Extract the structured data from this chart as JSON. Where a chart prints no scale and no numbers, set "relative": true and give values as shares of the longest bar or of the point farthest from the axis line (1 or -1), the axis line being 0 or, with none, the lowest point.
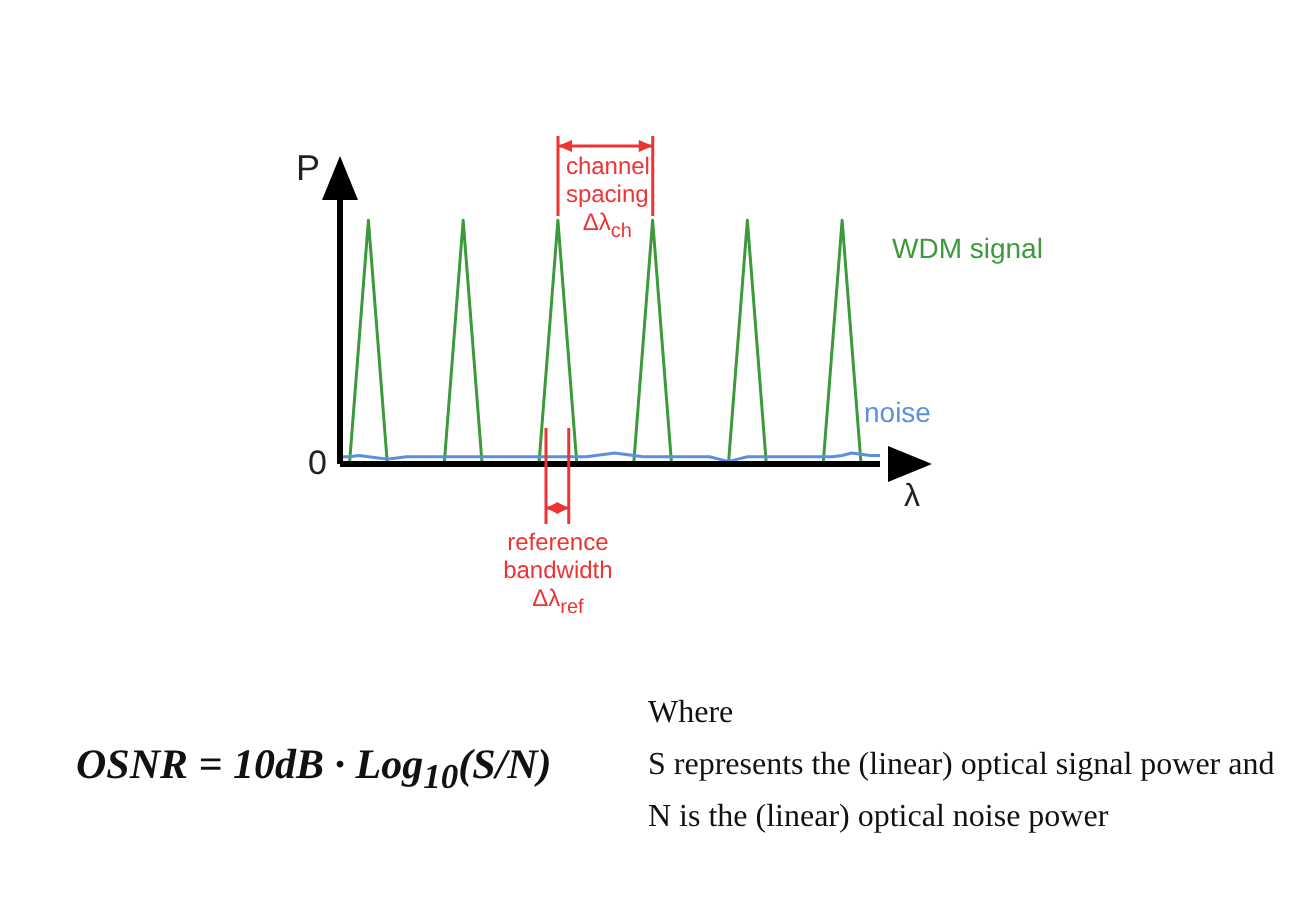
{
  "chart_data": {
    "type": "line",
    "relative": true,
    "xlabel": "λ",
    "ylabel": "P",
    "legend": false,
    "grid": false,
    "marker": "none",
    "line_style": "solid",
    "categories": [
      null,
      null,
      null,
      null,
      null,
      null,
      null,
      null,
      null,
      null,
      null,
      null,
      null,
      null,
      null,
      null,
      null,
      null,
      null,
      null,
      null,
      null,
      null,
      null,
      null,
      null,
      null,
      null,
      null,
      null,
      null,
      null,
      null,
      null,
      null,
      null,
      null,
      null,
      null,
      null,
      null,
      null,
      null,
      null,
      null,
      null,
      null,
      null,
      null,
      null,
      null,
      null,
      null,
      null,
      null,
      null,
      null,
      null
    ],
    "series": [
      {
        "name": "WDM signal",
        "color": "#3c9a3c",
        "values": [
          0,
          0,
          0.5,
          1,
          0.5,
          0,
          0,
          0,
          0,
          0,
          0,
          0,
          0.5,
          1,
          0.5,
          0,
          0,
          0,
          0,
          0,
          0,
          0,
          0.5,
          1,
          0.5,
          0,
          0,
          0,
          0,
          0,
          0,
          0,
          0.5,
          1,
          0.5,
          0,
          0,
          0,
          0,
          0,
          0,
          0,
          0.5,
          1,
          0.5,
          0,
          0,
          0,
          0,
          0,
          0,
          0,
          0.5,
          1,
          0.5,
          0,
          0,
          0
        ]
      },
      {
        "name": "noise",
        "color": "#5b8fe0",
        "values": [
          0.03,
          0.03,
          0.035,
          0.03,
          0.025,
          0.02,
          0.025,
          0.03,
          0.03,
          0.03,
          0.03,
          0.03,
          0.03,
          0.03,
          0.03,
          0.03,
          0.03,
          0.03,
          0.03,
          0.03,
          0.03,
          0.03,
          0.03,
          0.03,
          0.03,
          0.03,
          0.03,
          0.035,
          0.04,
          0.045,
          0.04,
          0.035,
          0.03,
          0.03,
          0.03,
          0.03,
          0.03,
          0.03,
          0.03,
          0.03,
          0.02,
          0.01,
          0.02,
          0.03,
          0.03,
          0.03,
          0.03,
          0.03,
          0.03,
          0.03,
          0.03,
          0.03,
          0.03,
          0.035,
          0.045,
          0.04,
          0.035,
          0.035
        ]
      }
    ],
    "annotations": [
      "0",
      "channel spacing Δλ$_{ch}$",
      "reference bandwidth Δλ$_{ref}$",
      "OSNR = 10dB · Log$_{10}$(S/N)",
      "Where",
      "S represents the (linear) optical signal power and",
      "N is the (linear) optical noise power"
    ]
  }
}
